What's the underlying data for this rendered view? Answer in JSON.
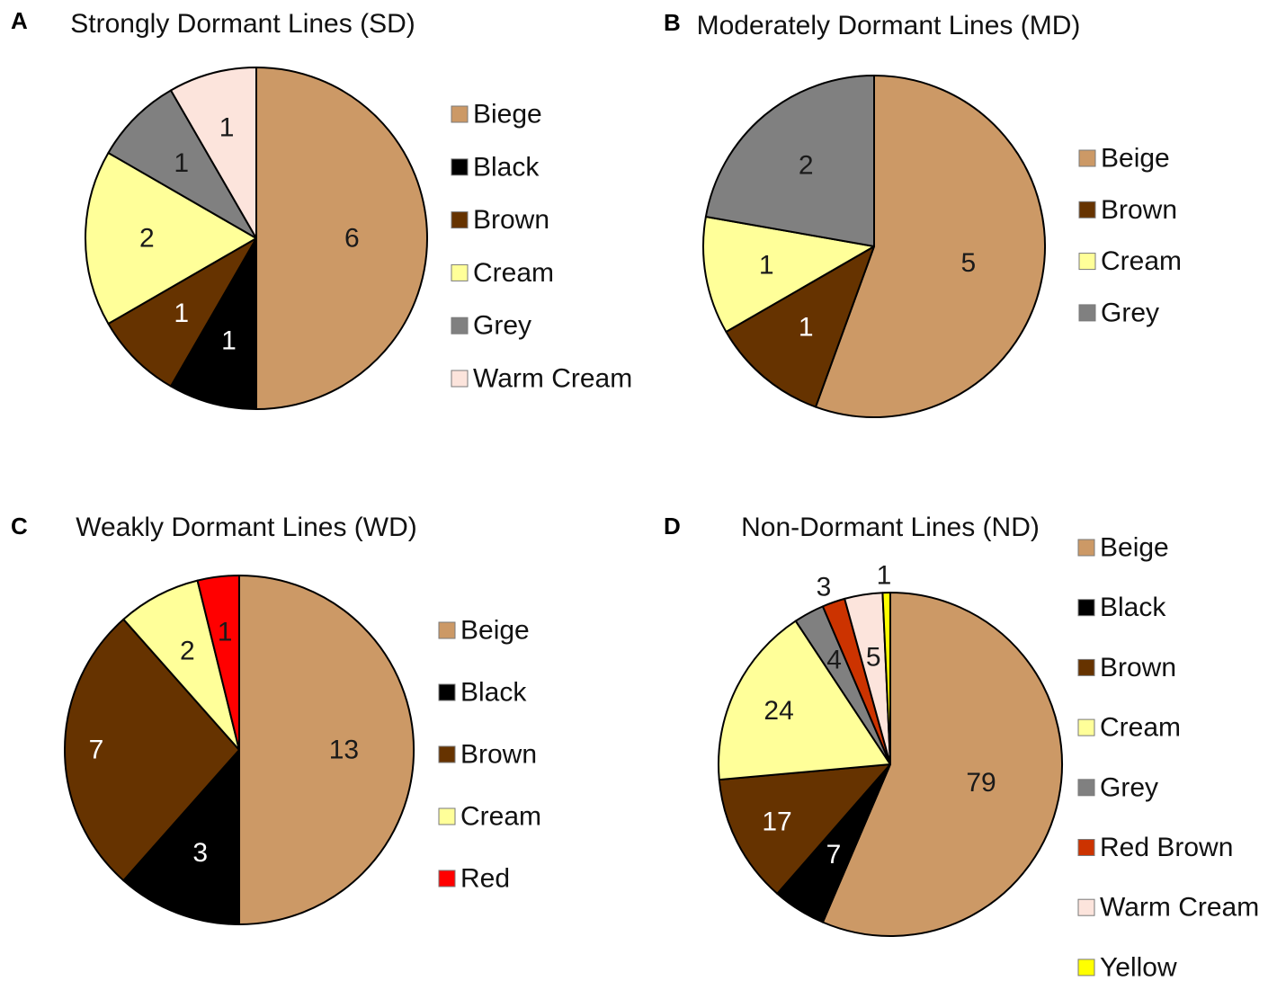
{
  "chart_data": [
    {
      "panel": "A",
      "type": "pie",
      "title": "Strongly Dormant Lines (SD)",
      "slices": [
        {
          "name": "Biege",
          "value": 6,
          "color": "#CC9966",
          "label_color": "#1a1a1a"
        },
        {
          "name": "Black",
          "value": 1,
          "color": "#000000",
          "label_color": "#ffffff"
        },
        {
          "name": "Brown",
          "value": 1,
          "color": "#663300",
          "label_color": "#ffffff"
        },
        {
          "name": "Cream",
          "value": 2,
          "color": "#FFFF99",
          "label_color": "#1a1a1a"
        },
        {
          "name": "Grey",
          "value": 1,
          "color": "#808080",
          "label_color": "#1a1a1a"
        },
        {
          "name": "Warm Cream",
          "value": 1,
          "color": "#FCE4DC",
          "label_color": "#1a1a1a"
        }
      ]
    },
    {
      "panel": "B",
      "type": "pie",
      "title": "Moderately Dormant Lines (MD)",
      "slices": [
        {
          "name": "Beige",
          "value": 5,
          "color": "#CC9966",
          "label_color": "#1a1a1a"
        },
        {
          "name": "Brown",
          "value": 1,
          "color": "#663300",
          "label_color": "#ffffff"
        },
        {
          "name": "Cream",
          "value": 1,
          "color": "#FFFF99",
          "label_color": "#1a1a1a"
        },
        {
          "name": "Grey",
          "value": 2,
          "color": "#808080",
          "label_color": "#1a1a1a"
        }
      ]
    },
    {
      "panel": "C",
      "type": "pie",
      "title": "Weakly Dormant Lines (WD)",
      "slices": [
        {
          "name": "Beige",
          "value": 13,
          "color": "#CC9966",
          "label_color": "#1a1a1a"
        },
        {
          "name": "Black",
          "value": 3,
          "color": "#000000",
          "label_color": "#ffffff"
        },
        {
          "name": "Brown",
          "value": 7,
          "color": "#663300",
          "label_color": "#ffffff"
        },
        {
          "name": "Cream",
          "value": 2,
          "color": "#FFFF99",
          "label_color": "#1a1a1a"
        },
        {
          "name": "Red",
          "value": 1,
          "color": "#FF0000",
          "label_color": "#1a1a1a"
        }
      ]
    },
    {
      "panel": "D",
      "type": "pie",
      "title": "Non-Dormant Lines (ND)",
      "slices": [
        {
          "name": "Beige",
          "value": 79,
          "color": "#CC9966",
          "label_color": "#1a1a1a"
        },
        {
          "name": "Black",
          "value": 7,
          "color": "#000000",
          "label_color": "#ffffff"
        },
        {
          "name": "Brown",
          "value": 17,
          "color": "#663300",
          "label_color": "#ffffff"
        },
        {
          "name": "Cream",
          "value": 24,
          "color": "#FFFF99",
          "label_color": "#1a1a1a"
        },
        {
          "name": "Grey",
          "value": 4,
          "color": "#808080",
          "label_color": "#1a1a1a"
        },
        {
          "name": "Red Brown",
          "value": 3,
          "color": "#CC3300",
          "label_color": "#1a1a1a"
        },
        {
          "name": "Warm Cream",
          "value": 5,
          "color": "#FCE4DC",
          "label_color": "#1a1a1a"
        },
        {
          "name": "Yellow",
          "value": 1,
          "color": "#FFFF00",
          "label_color": "#1a1a1a"
        }
      ]
    }
  ]
}
